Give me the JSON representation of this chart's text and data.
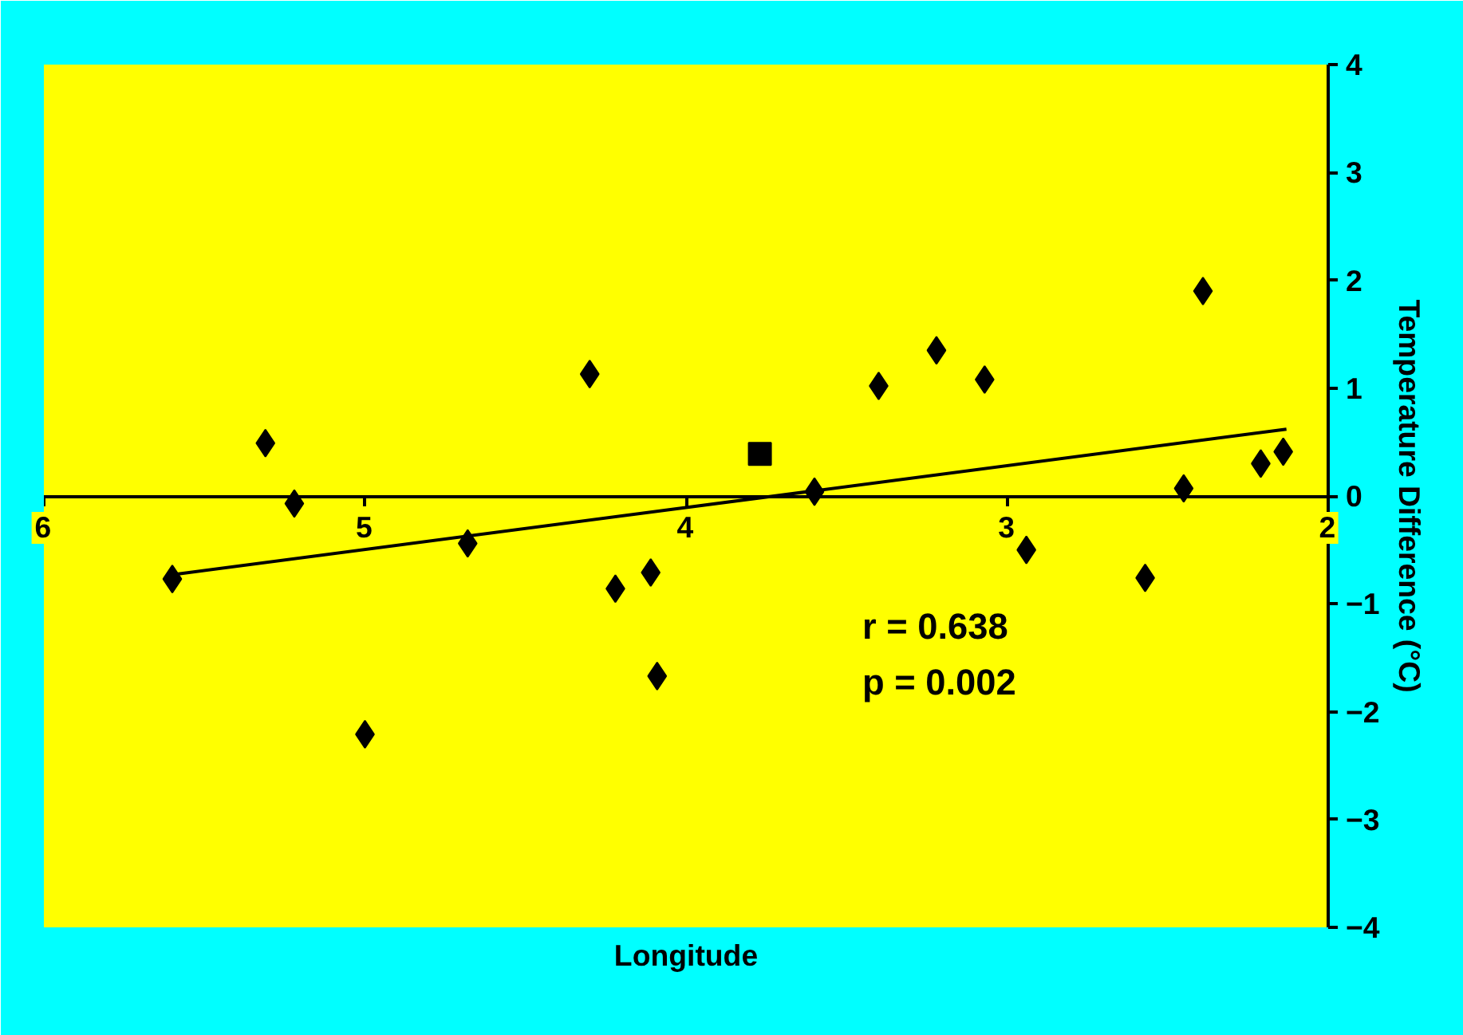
{
  "chart_data": {
    "type": "scatter",
    "xlabel": "Longitude",
    "ylabel": "Temperature Difference (°C)",
    "xlim": [
      6,
      2
    ],
    "ylim": [
      -4,
      4
    ],
    "xticks": [
      6,
      5,
      4,
      3,
      2
    ],
    "yticks": [
      -4,
      -3,
      -2,
      -1,
      0,
      1,
      2,
      3,
      4
    ],
    "grid": false,
    "series": [
      {
        "type": "scatter",
        "marker": "diamond",
        "color": "#000000",
        "x": [
          5.6,
          5.31,
          5.22,
          5.0,
          4.68,
          4.3,
          4.22,
          4.11,
          4.09,
          3.6,
          3.4,
          3.22,
          3.07,
          2.94,
          2.57,
          2.45,
          2.39,
          2.21,
          2.14
        ],
        "values": [
          -0.77,
          0.49,
          -0.07,
          -2.21,
          -0.44,
          1.13,
          -0.86,
          -0.71,
          -1.67,
          0.04,
          1.02,
          1.35,
          1.08,
          -0.5,
          -0.76,
          0.07,
          1.9,
          0.3,
          0.41
        ]
      },
      {
        "type": "scatter",
        "marker": "square",
        "color": "#000000",
        "x": [
          3.77
        ],
        "values": [
          0.39
        ]
      },
      {
        "type": "line",
        "color": "#000000",
        "line_style": "solid",
        "marker": "none",
        "x": [
          5.6,
          2.13
        ],
        "values": [
          -0.73,
          0.62
        ]
      }
    ],
    "annotations": [
      "r = 0.638",
      "p = 0.002"
    ]
  }
}
